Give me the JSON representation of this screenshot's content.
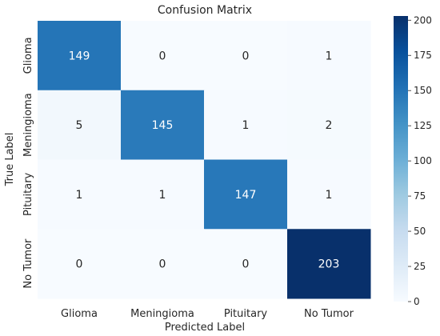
{
  "chart_data": {
    "type": "heatmap",
    "title": "Confusion Matrix",
    "xlabel": "Predicted Label",
    "ylabel": "True Label",
    "x_categories": [
      "Glioma",
      "Meningioma",
      "Pituitary",
      "No Tumor"
    ],
    "y_categories": [
      "Glioma",
      "Meningioma",
      "Pituitary",
      "No Tumor"
    ],
    "values": [
      [
        149,
        0,
        0,
        1
      ],
      [
        5,
        145,
        1,
        2
      ],
      [
        1,
        1,
        147,
        1
      ],
      [
        0,
        0,
        0,
        203
      ]
    ],
    "colormap": "Blues",
    "color_range": [
      0,
      203
    ],
    "colorbar_ticks": [
      0,
      25,
      50,
      75,
      100,
      125,
      150,
      175,
      200
    ],
    "colors": {
      "low": "#f7fbff",
      "high": "#08306b",
      "text_light": "#ffffff",
      "text_dark": "#262626"
    }
  }
}
